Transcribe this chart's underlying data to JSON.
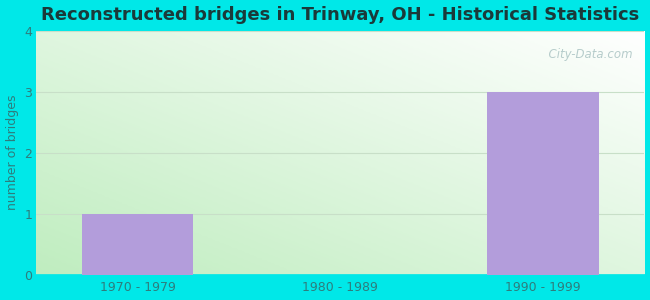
{
  "title": "Reconstructed bridges in Trinway, OH - Historical Statistics",
  "categories": [
    "1970 - 1979",
    "1980 - 1989",
    "1990 - 1999"
  ],
  "values": [
    1,
    0,
    3
  ],
  "bar_color": "#b39ddb",
  "ylabel": "number of bridges",
  "ylim": [
    0,
    4
  ],
  "yticks": [
    0,
    1,
    2,
    3,
    4
  ],
  "background_color": "#00e8e8",
  "grid_color": "#c8dfc8",
  "title_color": "#1a3a3a",
  "axis_label_color": "#2e7d7d",
  "tick_label_color": "#2e7d7d",
  "watermark": "  City-Data.com",
  "title_fontsize": 13,
  "ylabel_fontsize": 9,
  "tick_fontsize": 9,
  "plot_bg_left": "#c8efc8",
  "plot_bg_right": "#f0f8f8"
}
